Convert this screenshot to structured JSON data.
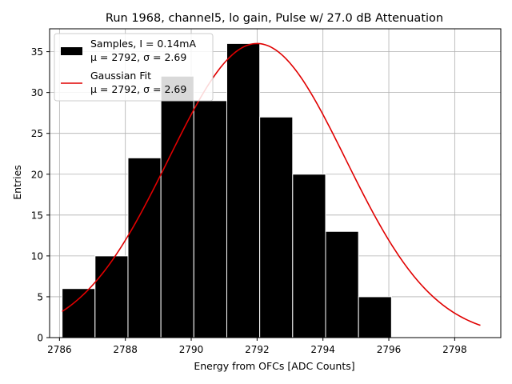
{
  "chart_data": {
    "type": "bar",
    "title": "Run 1968, channel5, lo gain, Pulse w/ 27.0 dB Attenuation",
    "xlabel": "Energy from OFCs [ADC Counts]",
    "ylabel": "Entries",
    "xlim": [
      2785.7,
      2799.4
    ],
    "ylim": [
      0,
      37.8
    ],
    "xticks": [
      2786,
      2788,
      2790,
      2792,
      2794,
      2796,
      2798
    ],
    "yticks": [
      0,
      5,
      10,
      15,
      20,
      25,
      30,
      35
    ],
    "grid": true,
    "legend_position": "top-left",
    "bins": [
      {
        "x0": 2786.08,
        "x1": 2787.08,
        "count": 6
      },
      {
        "x0": 2787.08,
        "x1": 2788.08,
        "count": 10
      },
      {
        "x0": 2788.08,
        "x1": 2789.08,
        "count": 22
      },
      {
        "x0": 2789.08,
        "x1": 2790.08,
        "count": 32
      },
      {
        "x0": 2790.08,
        "x1": 2791.08,
        "count": 29
      },
      {
        "x0": 2791.08,
        "x1": 2792.08,
        "count": 36
      },
      {
        "x0": 2792.08,
        "x1": 2793.08,
        "count": 27
      },
      {
        "x0": 2793.08,
        "x1": 2794.08,
        "count": 20
      },
      {
        "x0": 2794.08,
        "x1": 2795.08,
        "count": 13
      },
      {
        "x0": 2795.08,
        "x1": 2796.08,
        "count": 5
      }
    ],
    "series": [
      {
        "name": "Samples, I = 0.14mA",
        "stats": "μ = 2792, σ = 2.69",
        "kind": "histogram",
        "color": "#000000"
      },
      {
        "name": "Gaussian Fit",
        "stats": "μ = 2792, σ = 2.69",
        "kind": "line",
        "color": "#e00000",
        "fit": {
          "mu": 2792.0,
          "sigma": 2.69,
          "amplitude": 36.0,
          "x_range": [
            2786.08,
            2798.78
          ]
        }
      }
    ]
  }
}
